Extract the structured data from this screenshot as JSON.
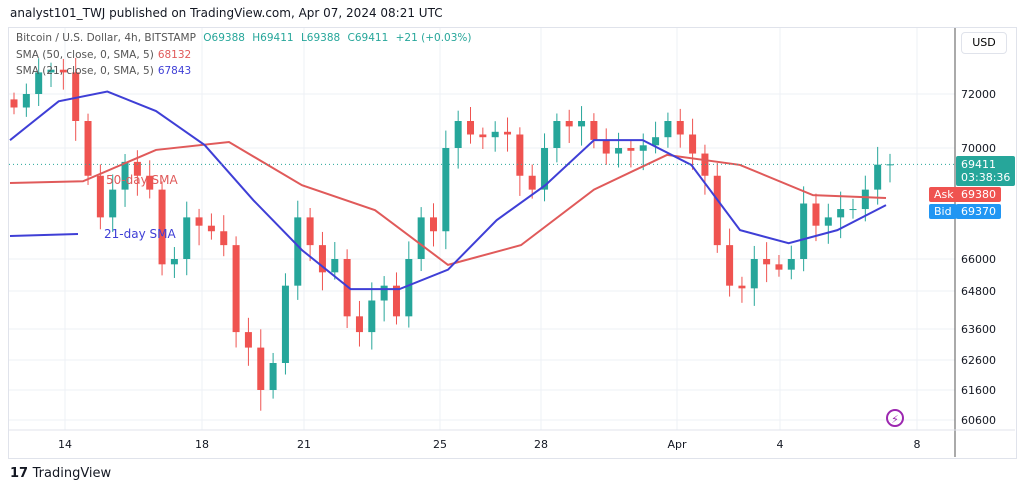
{
  "published": "analyst101_TWJ published on TradingView.com, Apr 07, 2024 08:21 UTC",
  "legend": {
    "symbol": "Bitcoin / U.S. Dollar, 4h, BITSTAMP",
    "o": "O69388",
    "h": "H69411",
    "l": "L69388",
    "c": "C69411",
    "chg": "+21 (+0.03%)",
    "sma50": "SMA (50, close, 0, SMA, 5)",
    "sma50_val": "68132",
    "sma21": "SMA (21, close, 0, SMA, 5)",
    "sma21_val": "67843"
  },
  "currency": "USD",
  "price_tag": {
    "price": "69411",
    "countdown": "03:38:36",
    "ask_label": "Ask",
    "ask": "69380",
    "bid_label": "Bid",
    "bid": "69370"
  },
  "annotations": {
    "sma50": "50-day SMA",
    "sma21": "21-day SMA"
  },
  "logo": "TradingView",
  "colors": {
    "up": "#26a69a",
    "down": "#ef5350",
    "sma50": "#e05a5a",
    "sma21": "#3f3fd6",
    "bid": "#2196f3"
  },
  "chart_data": {
    "type": "candlestick",
    "title": "Bitcoin / U.S. Dollar, 4h, BITSTAMP",
    "y_ticks": [
      72000,
      70000,
      66000,
      64800,
      63600,
      62600,
      61600,
      60600
    ],
    "x_ticks": [
      "14",
      "18",
      "21",
      "25",
      "28",
      "Apr",
      "4",
      "8"
    ],
    "closes": [
      71500,
      72000,
      72800,
      72900,
      72800,
      71000,
      69000,
      67500,
      68500,
      69500,
      69000,
      68500,
      65800,
      66000,
      67500,
      67200,
      67000,
      66500,
      63500,
      63000,
      61600,
      62500,
      65000,
      67500,
      66500,
      65500,
      66000,
      64000,
      63500,
      64500,
      65000,
      64000,
      66000,
      67500,
      67000,
      70000,
      71000,
      70500,
      70400,
      70600,
      70500,
      69000,
      68500,
      70000,
      71000,
      70800,
      71000,
      70300,
      69800,
      70000,
      69900,
      70100,
      70400,
      71000,
      70500,
      69800,
      69000,
      66500,
      65000,
      64900,
      66000,
      65800,
      65600,
      66000,
      68000,
      67200,
      67500,
      67800,
      67800,
      68500,
      69400,
      69411
    ],
    "sma50": [
      68740,
      68800,
      69930,
      70220,
      68660,
      67760,
      65780,
      66500,
      68500,
      69750,
      69390,
      68300,
      68200
    ],
    "sma21": [
      70290,
      71730,
      72090,
      71370,
      70110,
      68120,
      66320,
      64870,
      64870,
      65600,
      67400,
      68660,
      70290,
      70290,
      69390,
      67040,
      66570,
      67040,
      67940
    ],
    "last_price": 69411
  }
}
